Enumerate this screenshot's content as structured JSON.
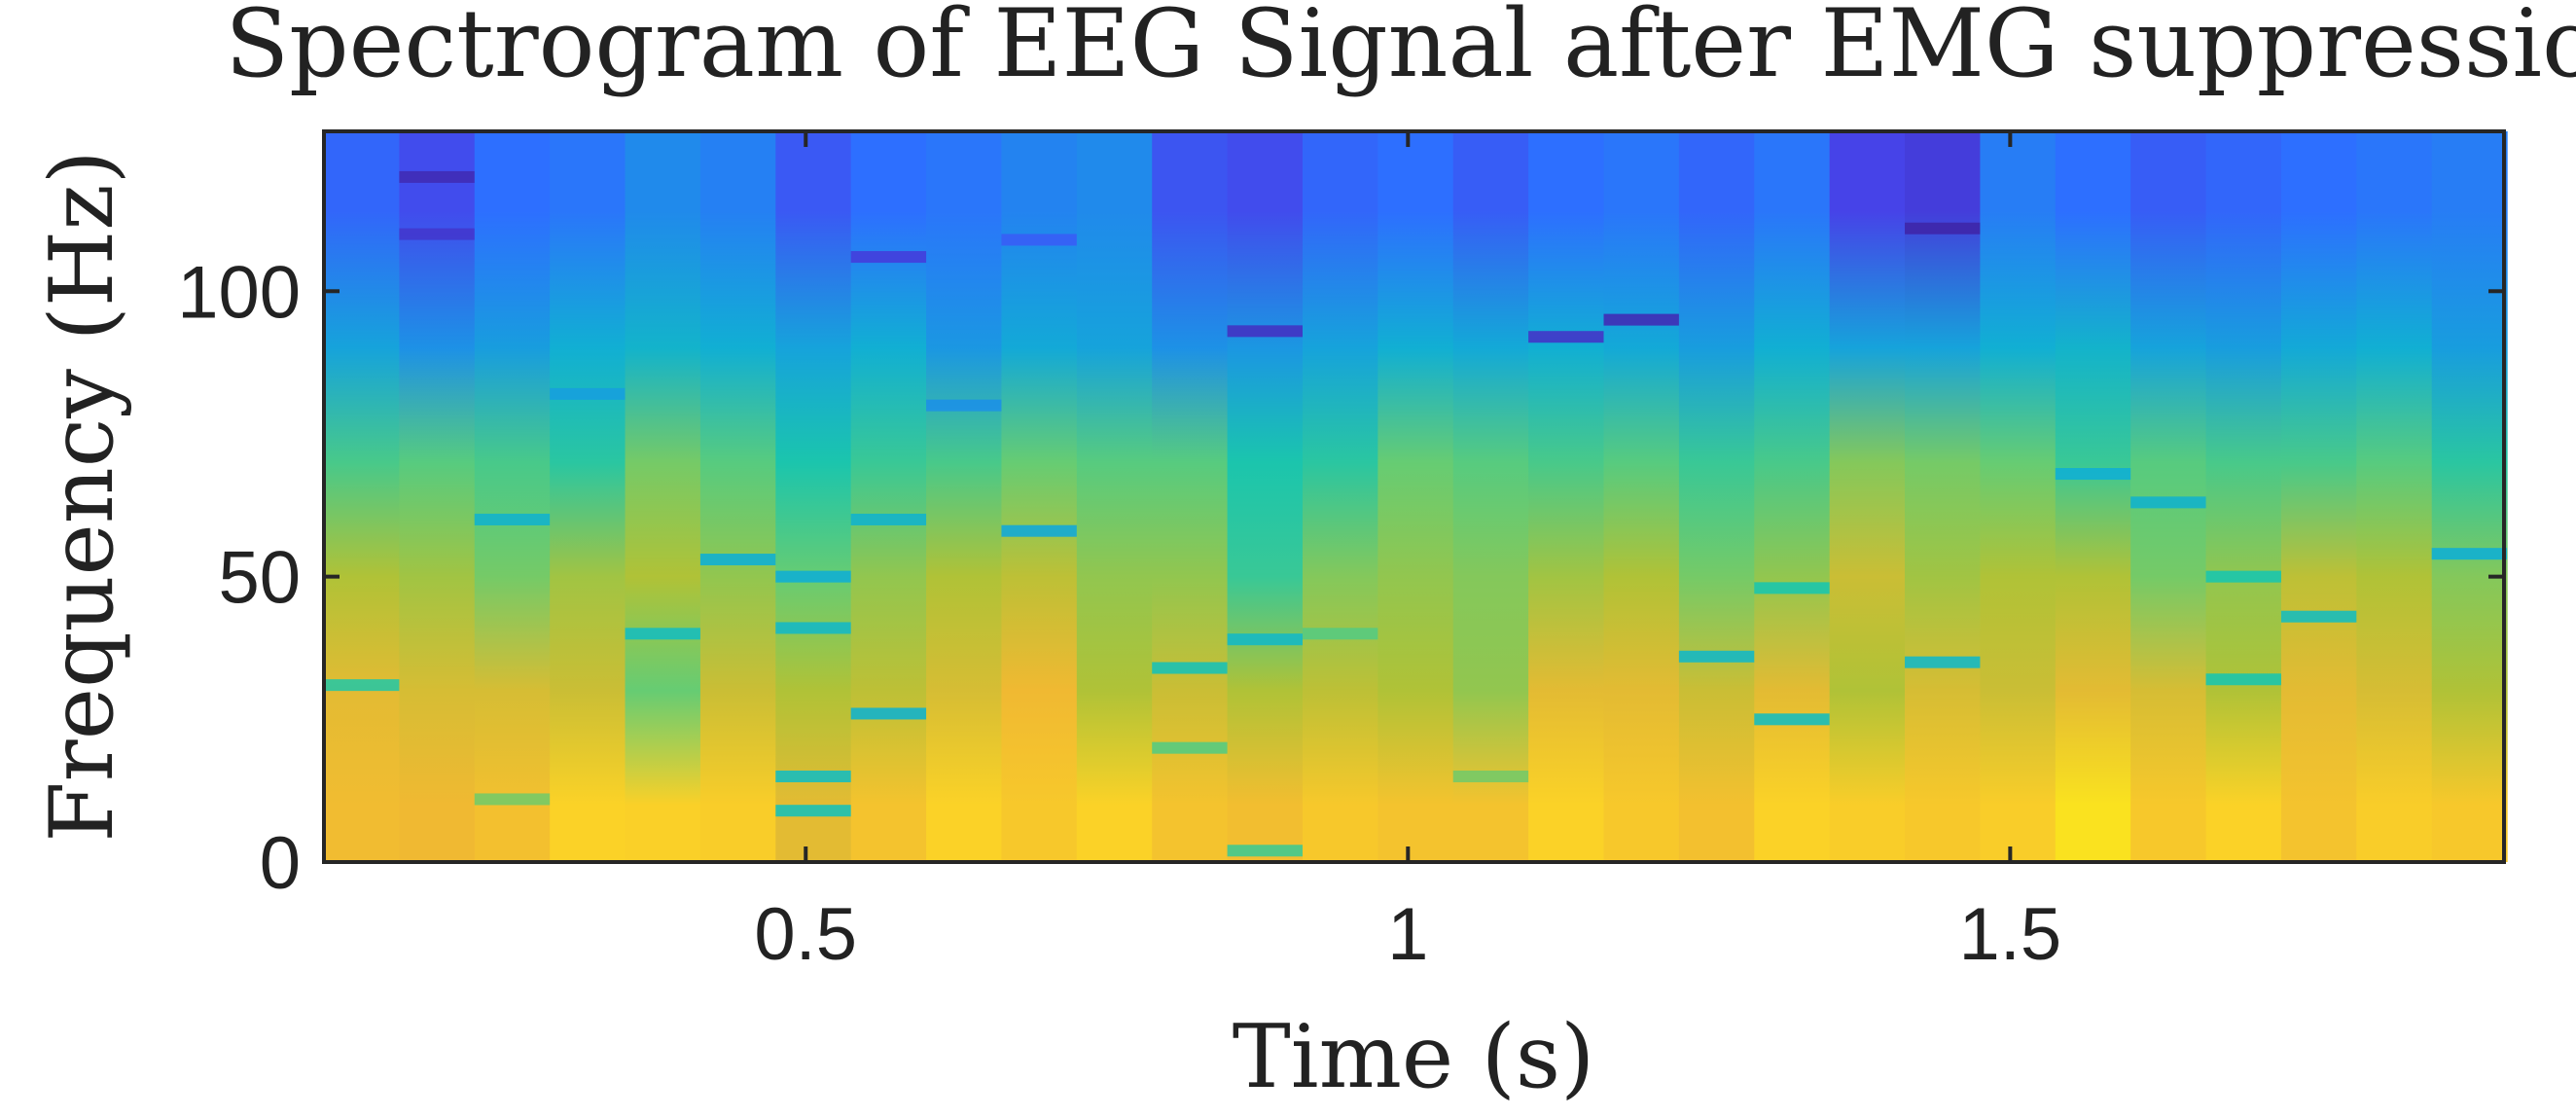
{
  "chart_data": {
    "type": "heatmap",
    "title": "Spectrogram of EEG Signal after EMG suppression",
    "xlabel": "Time (s)",
    "ylabel": "Frequency (Hz)",
    "xlim": [
      0.1,
      1.91
    ],
    "ylim": [
      0,
      128
    ],
    "xticks": [
      0.5,
      1,
      1.5
    ],
    "xtick_labels": [
      "0.5",
      "1",
      "1.5"
    ],
    "yticks": [
      0,
      50,
      100
    ],
    "ytick_labels": [
      "0",
      "50",
      "100"
    ],
    "colormap": "parula",
    "time_bins": 29,
    "time_start": 0.1,
    "time_step": 0.0625,
    "freq_band_edges": [
      0,
      20,
      40,
      60,
      80,
      100,
      128
    ],
    "band_levels": [
      [
        0.81,
        0.78,
        0.7,
        0.56,
        0.36,
        0.18
      ],
      [
        0.8,
        0.76,
        0.68,
        0.58,
        0.3,
        0.12
      ],
      [
        0.83,
        0.76,
        0.62,
        0.56,
        0.34,
        0.2
      ],
      [
        0.9,
        0.74,
        0.68,
        0.52,
        0.4,
        0.22
      ],
      [
        0.89,
        0.6,
        0.7,
        0.62,
        0.42,
        0.28
      ],
      [
        0.88,
        0.74,
        0.66,
        0.58,
        0.4,
        0.25
      ],
      [
        0.78,
        0.7,
        0.6,
        0.5,
        0.36,
        0.15
      ],
      [
        0.84,
        0.72,
        0.66,
        0.54,
        0.4,
        0.2
      ],
      [
        0.9,
        0.76,
        0.7,
        0.56,
        0.32,
        0.22
      ],
      [
        0.86,
        0.8,
        0.72,
        0.6,
        0.38,
        0.26
      ],
      [
        0.9,
        0.7,
        0.66,
        0.58,
        0.36,
        0.28
      ],
      [
        0.84,
        0.74,
        0.66,
        0.58,
        0.3,
        0.14
      ],
      [
        0.82,
        0.7,
        0.54,
        0.5,
        0.32,
        0.12
      ],
      [
        0.86,
        0.72,
        0.64,
        0.52,
        0.36,
        0.18
      ],
      [
        0.84,
        0.7,
        0.66,
        0.6,
        0.4,
        0.2
      ],
      [
        0.84,
        0.66,
        0.64,
        0.58,
        0.38,
        0.16
      ],
      [
        0.9,
        0.78,
        0.68,
        0.56,
        0.4,
        0.2
      ],
      [
        0.86,
        0.78,
        0.7,
        0.58,
        0.38,
        0.22
      ],
      [
        0.83,
        0.74,
        0.62,
        0.54,
        0.34,
        0.18
      ],
      [
        0.9,
        0.78,
        0.66,
        0.56,
        0.4,
        0.22
      ],
      [
        0.88,
        0.7,
        0.74,
        0.64,
        0.36,
        0.1
      ],
      [
        0.86,
        0.76,
        0.68,
        0.62,
        0.36,
        0.08
      ],
      [
        0.88,
        0.74,
        0.7,
        0.6,
        0.4,
        0.24
      ],
      [
        0.94,
        0.78,
        0.7,
        0.54,
        0.42,
        0.2
      ],
      [
        0.86,
        0.76,
        0.62,
        0.58,
        0.36,
        0.16
      ],
      [
        0.9,
        0.7,
        0.66,
        0.56,
        0.34,
        0.18
      ],
      [
        0.84,
        0.78,
        0.72,
        0.56,
        0.38,
        0.2
      ],
      [
        0.88,
        0.76,
        0.7,
        0.58,
        0.4,
        0.22
      ],
      [
        0.86,
        0.7,
        0.64,
        0.52,
        0.34,
        0.24
      ]
    ],
    "line_features": [
      {
        "time_bin": 0,
        "freq": 31,
        "level": 0.52
      },
      {
        "time_bin": 1,
        "freq": 120,
        "level": 0.02
      },
      {
        "time_bin": 1,
        "freq": 110,
        "level": 0.06
      },
      {
        "time_bin": 2,
        "freq": 60,
        "level": 0.42
      },
      {
        "time_bin": 2,
        "freq": 11,
        "level": 0.62
      },
      {
        "time_bin": 3,
        "freq": 82,
        "level": 0.35
      },
      {
        "time_bin": 4,
        "freq": 40,
        "level": 0.46
      },
      {
        "time_bin": 5,
        "freq": 53,
        "level": 0.4
      },
      {
        "time_bin": 6,
        "freq": 50,
        "level": 0.4
      },
      {
        "time_bin": 6,
        "freq": 41,
        "level": 0.44
      },
      {
        "time_bin": 6,
        "freq": 15,
        "level": 0.46
      },
      {
        "time_bin": 6,
        "freq": 9,
        "level": 0.48
      },
      {
        "time_bin": 7,
        "freq": 106,
        "level": 0.08
      },
      {
        "time_bin": 7,
        "freq": 60,
        "level": 0.42
      },
      {
        "time_bin": 7,
        "freq": 26,
        "level": 0.42
      },
      {
        "time_bin": 8,
        "freq": 80,
        "level": 0.3
      },
      {
        "time_bin": 9,
        "freq": 58,
        "level": 0.38
      },
      {
        "time_bin": 9,
        "freq": 109,
        "level": 0.16
      },
      {
        "time_bin": 11,
        "freq": 34,
        "level": 0.48
      },
      {
        "time_bin": 11,
        "freq": 20,
        "level": 0.58
      },
      {
        "time_bin": 12,
        "freq": 93,
        "level": 0.04
      },
      {
        "time_bin": 12,
        "freq": 39,
        "level": 0.44
      },
      {
        "time_bin": 12,
        "freq": 2,
        "level": 0.55
      },
      {
        "time_bin": 13,
        "freq": 40,
        "level": 0.58
      },
      {
        "time_bin": 15,
        "freq": 15,
        "level": 0.62
      },
      {
        "time_bin": 16,
        "freq": 92,
        "level": 0.05
      },
      {
        "time_bin": 17,
        "freq": 95,
        "level": 0.02
      },
      {
        "time_bin": 18,
        "freq": 36,
        "level": 0.44
      },
      {
        "time_bin": 19,
        "freq": 48,
        "level": 0.5
      },
      {
        "time_bin": 19,
        "freq": 25,
        "level": 0.46
      },
      {
        "time_bin": 21,
        "freq": 111,
        "level": 0.0
      },
      {
        "time_bin": 21,
        "freq": 35,
        "level": 0.44
      },
      {
        "time_bin": 23,
        "freq": 68,
        "level": 0.4
      },
      {
        "time_bin": 24,
        "freq": 63,
        "level": 0.42
      },
      {
        "time_bin": 25,
        "freq": 50,
        "level": 0.5
      },
      {
        "time_bin": 25,
        "freq": 32,
        "level": 0.5
      },
      {
        "time_bin": 26,
        "freq": 43,
        "level": 0.46
      },
      {
        "time_bin": 28,
        "freq": 54,
        "level": 0.4
      }
    ]
  }
}
